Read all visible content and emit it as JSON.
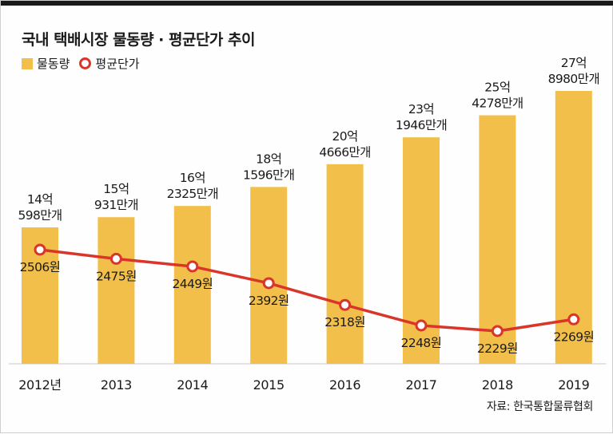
{
  "chart_data": {
    "type": "bar",
    "title": "국내 택배시장 물동량 · 평균단가 추이",
    "categories": [
      "2012년",
      "2013",
      "2014",
      "2015",
      "2016",
      "2017",
      "2018",
      "2019"
    ],
    "series": [
      {
        "name": "물동량",
        "kind": "bar",
        "color": "#f2c04a",
        "values": [
          1405980000,
          1509310000,
          1623250000,
          1815960000,
          2046660000,
          2319460000,
          2542780000,
          2789800000
        ],
        "labels": [
          [
            "14억",
            "598만개"
          ],
          [
            "15억",
            "931만개"
          ],
          [
            "16억",
            "2325만개"
          ],
          [
            "18억",
            "1596만개"
          ],
          [
            "20억",
            "4666만개"
          ],
          [
            "23억",
            "1946만개"
          ],
          [
            "25억",
            "4278만개"
          ],
          [
            "27억",
            "8980만개"
          ]
        ]
      },
      {
        "name": "평균단가",
        "kind": "line",
        "color": "#d9352b",
        "values": [
          2506,
          2475,
          2449,
          2392,
          2318,
          2248,
          2229,
          2269
        ],
        "labels": [
          "2506원",
          "2475원",
          "2449원",
          "2392원",
          "2318원",
          "2248원",
          "2229원",
          "2269원"
        ]
      }
    ],
    "legend": [
      "물동량",
      "평균단가"
    ],
    "legend_position": "top-left",
    "source": "자료: 한국통합물류협회"
  }
}
